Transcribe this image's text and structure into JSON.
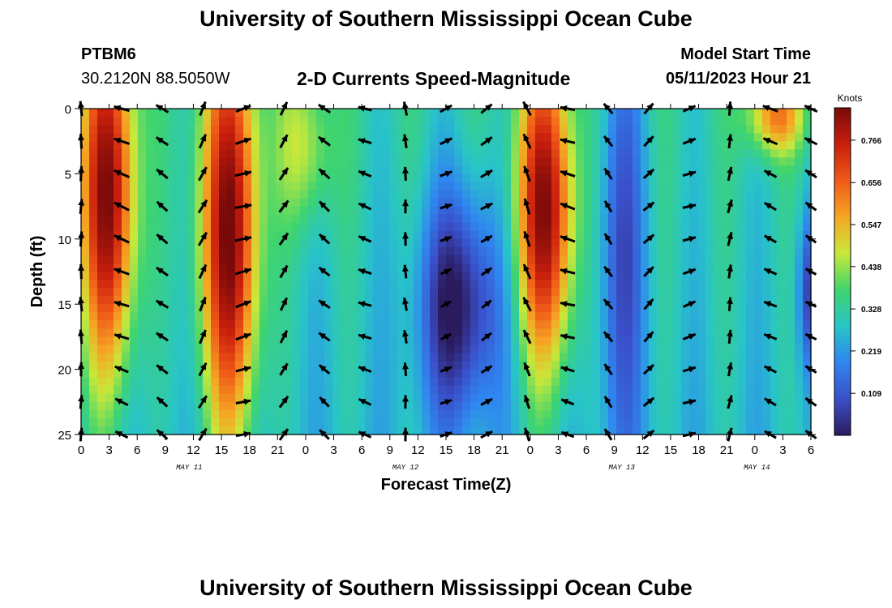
{
  "header": {
    "title": "University of Southern Mississippi Ocean Cube",
    "station": "PTBM6",
    "coords": "30.2120N  88.5050W",
    "subtitle": "2-D Currents Speed-Magnitude",
    "model_label": "Model Start Time",
    "model_time": "05/11/2023 Hour 21"
  },
  "footer": {
    "title": "University of Southern Mississippi Ocean Cube"
  },
  "chart_data": {
    "type": "heatmap",
    "xlabel": "Forecast Time(Z)",
    "ylabel": "Depth (ft)",
    "x_range_hours": [
      0,
      81
    ],
    "ylim": [
      0,
      25
    ],
    "y_ticks": [
      0,
      5,
      10,
      15,
      20,
      25
    ],
    "x_tick_labels": [
      "0",
      "3",
      "6",
      "9",
      "12",
      "15",
      "18",
      "21",
      "0",
      "3",
      "6",
      "9",
      "12",
      "15",
      "18",
      "21",
      "0",
      "3",
      "6",
      "9",
      "12",
      "15",
      "18",
      "21",
      "0",
      "3",
      "6"
    ],
    "date_labels": [
      {
        "label": "MAY 11",
        "hour": 12
      },
      {
        "label": "MAY 12",
        "hour": 36
      },
      {
        "label": "MAY 13",
        "hour": 60
      },
      {
        "label": "MAY 14",
        "hour": 75
      }
    ],
    "colorbar": {
      "unit": "Knots",
      "range": [
        0,
        0.85
      ],
      "ticks": [
        "0.766",
        "0.656",
        "0.547",
        "0.438",
        "0.328",
        "0.219",
        "0.109"
      ],
      "colors": [
        "#2b1b5e",
        "#3a4fc9",
        "#2f86f0",
        "#28c4c8",
        "#3fd46e",
        "#c8e83a",
        "#f5a623",
        "#f05a18",
        "#c81e0c",
        "#7a0a0a"
      ]
    },
    "speed_peaks": [
      {
        "hour": 3,
        "depth_center": 7,
        "speed": 0.85,
        "width_h": 3.0,
        "depth_spread": 14
      },
      {
        "hour": 16.5,
        "depth_center": 10,
        "speed": 0.86,
        "width_h": 3.2,
        "depth_spread": 16
      },
      {
        "hour": 25,
        "depth_center": 3,
        "speed": 0.48,
        "width_h": 3.0,
        "depth_spread": 6
      },
      {
        "hour": 51.5,
        "depth_center": 8,
        "speed": 0.84,
        "width_h": 3.2,
        "depth_spread": 12
      },
      {
        "hour": 77,
        "depth_center": 0.5,
        "speed": 0.62,
        "width_h": 3.0,
        "depth_spread": 3
      }
    ],
    "speed_minima": [
      {
        "hour": 42,
        "depth_center": 15,
        "speed": 0.02,
        "width_h": 4.5,
        "depth_spread": 9
      },
      {
        "hour": 60,
        "depth_center": 10,
        "speed": 0.12,
        "width_h": 2.5,
        "depth_spread": 18
      },
      {
        "hour": 81,
        "depth_center": 14,
        "speed": 0.1,
        "width_h": 1.5,
        "depth_spread": 6
      }
    ],
    "vector_hours": [
      0,
      4.5,
      9,
      13.5,
      18,
      22.5,
      27,
      31.5,
      36,
      40.5,
      45,
      49.5,
      54,
      58.5,
      63,
      67.5,
      72,
      76.5,
      81
    ],
    "vector_depths": [
      0,
      2.5,
      5,
      7.5,
      10,
      12.5,
      15,
      17.5,
      20,
      22.5,
      25
    ]
  }
}
